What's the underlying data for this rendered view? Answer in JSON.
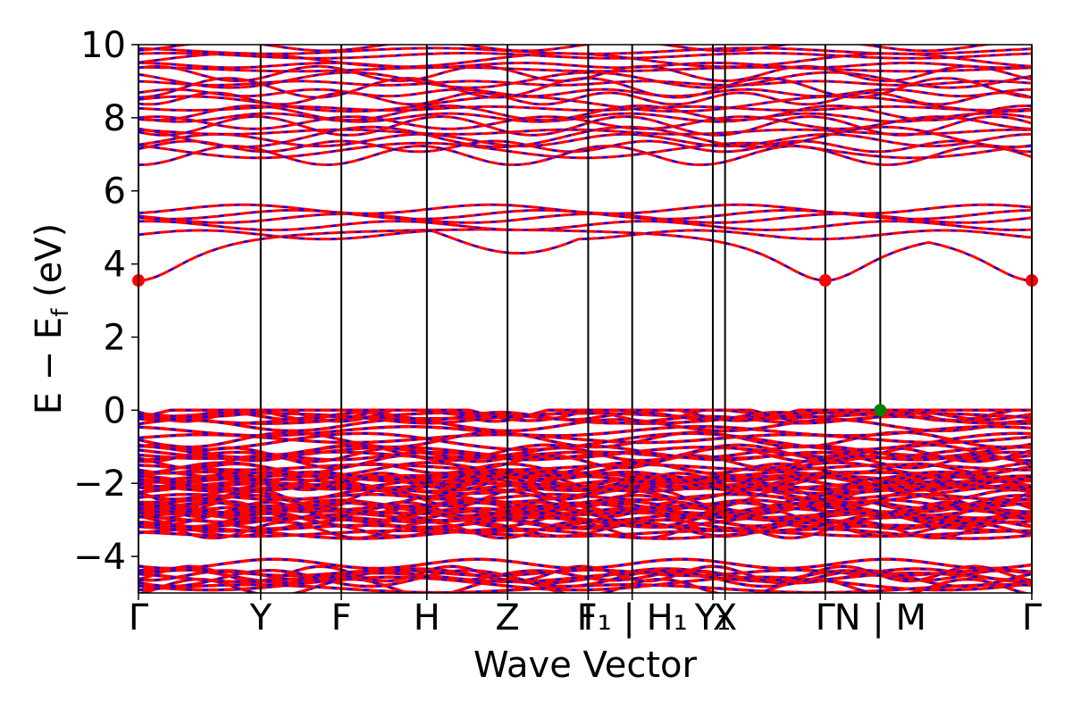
{
  "chart_data": {
    "type": "line",
    "xlabel": "Wave Vector",
    "ylabel": "E − E",
    "ylabel_sub": "f",
    "ylabel_unit": " (eV)",
    "ylim": [
      -5,
      10
    ],
    "yticks": [
      -4,
      -2,
      0,
      2,
      4,
      6,
      8,
      10
    ],
    "ytick_labels": [
      "−4",
      "−2",
      "0",
      "2",
      "4",
      "6",
      "8",
      "10"
    ],
    "xlim": [
      0,
      7.31
    ],
    "kpath_positions": [
      0,
      1.0,
      1.66,
      2.36,
      3.02,
      3.68,
      4.04,
      4.7,
      4.8,
      5.62,
      6.07,
      7.31
    ],
    "kpath_labels": [
      "Γ",
      "Y",
      "F",
      "H",
      "Z",
      "I",
      "F₁ | H₁",
      "Y₁",
      "X",
      "Γ",
      "N | M",
      "Γ"
    ],
    "band_colors": [
      "#ff0000",
      "#0000ff"
    ],
    "special_points": [
      {
        "x": 0,
        "y": 3.55,
        "color": "#ff0000",
        "label": "CBM"
      },
      {
        "x": 5.62,
        "y": 3.55,
        "color": "#ff0000",
        "label": "CBM"
      },
      {
        "x": 7.31,
        "y": 3.55,
        "color": "#ff0000",
        "label": "CBM"
      },
      {
        "x": 6.07,
        "y": 0.0,
        "color": "#008000",
        "label": "VBM"
      }
    ],
    "valence_bands_range": [
      -5,
      0
    ],
    "conduction_bands_range": [
      3.55,
      10
    ],
    "band_gap_eV": 3.55,
    "grid": false,
    "legend": "none"
  }
}
